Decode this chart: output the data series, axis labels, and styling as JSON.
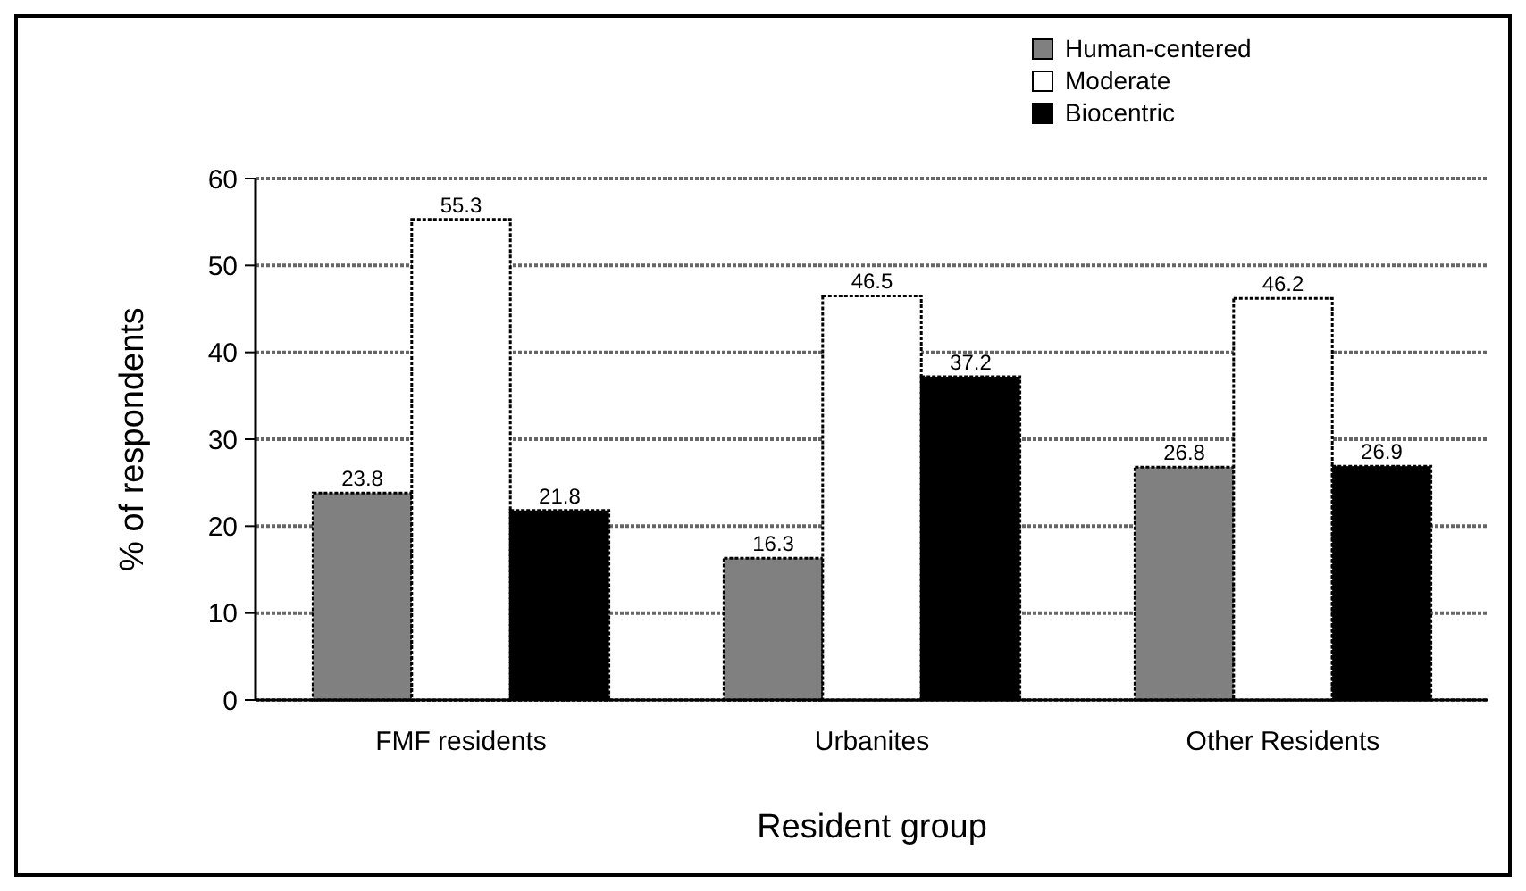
{
  "chart_data": {
    "type": "bar",
    "xlabel": "Resident group",
    "ylabel": "% of respondents",
    "categories": [
      "FMF residents",
      "Urbanites",
      "Other Residents"
    ],
    "series": [
      {
        "name": "Human-centered",
        "color": "#808080",
        "values": [
          23.8,
          16.3,
          26.8
        ]
      },
      {
        "name": "Moderate",
        "color": "#ffffff",
        "values": [
          55.3,
          46.5,
          46.2
        ]
      },
      {
        "name": "Biocentric",
        "color": "#000000",
        "values": [
          21.8,
          37.2,
          26.9
        ]
      }
    ],
    "ylim": [
      0,
      60
    ],
    "yticks": [
      0,
      10,
      20,
      30,
      40,
      50,
      60
    ],
    "grid": "y",
    "legend": "top right",
    "data_labels": true
  }
}
